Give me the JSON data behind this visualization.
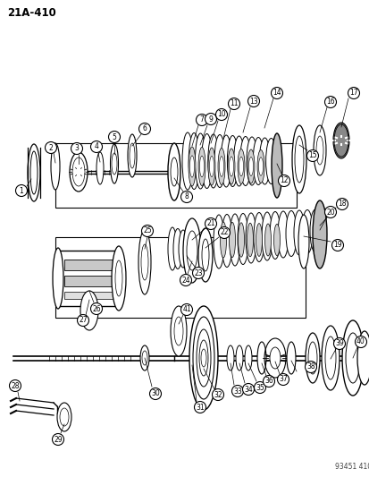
{
  "page_label": "21A-410",
  "watermark": "93451 410",
  "bg_color": "#ffffff",
  "lc": "#000000",
  "fig_w": 4.14,
  "fig_h": 5.33,
  "dpi": 100
}
